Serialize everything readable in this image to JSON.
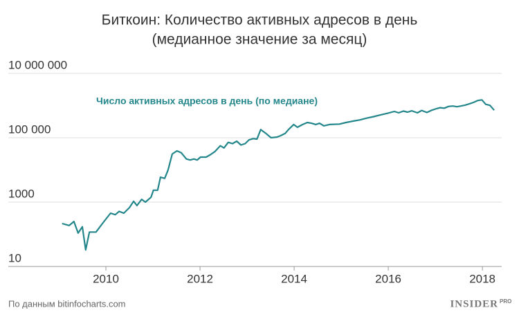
{
  "chart_data": {
    "type": "line",
    "title": "Биткоин: Количество активных адресов в день",
    "subtitle": "(медианное значение за месяц)",
    "annotation": "Число активных адресов в день (по медиане)",
    "source": "По данным bitinfocharts.com",
    "logo": "INSIDER",
    "logo_suffix": "PRO",
    "log_scale": true,
    "grid": true,
    "x": [
      2009.07,
      2009.22,
      2009.32,
      2009.41,
      2009.5,
      2009.57,
      2009.65,
      2009.79,
      2009.96,
      2010.1,
      2010.2,
      2010.28,
      2010.38,
      2010.5,
      2010.59,
      2010.66,
      2010.76,
      2010.84,
      2010.96,
      2011.01,
      2011.1,
      2011.16,
      2011.25,
      2011.32,
      2011.41,
      2011.51,
      2011.6,
      2011.71,
      2011.79,
      2011.87,
      2011.94,
      2012.01,
      2012.13,
      2012.22,
      2012.32,
      2012.43,
      2012.51,
      2012.6,
      2012.69,
      2012.78,
      2012.87,
      2012.96,
      2013.04,
      2013.13,
      2013.21,
      2013.29,
      2013.4,
      2013.51,
      2013.63,
      2013.71,
      2013.81,
      2013.88,
      2013.99,
      2014.07,
      2014.18,
      2014.28,
      2014.37,
      2014.46,
      2014.54,
      2014.63,
      2014.75,
      2014.96,
      2015.1,
      2015.25,
      2015.4,
      2015.54,
      2015.69,
      2015.84,
      2015.99,
      2016.13,
      2016.22,
      2016.32,
      2016.41,
      2016.5,
      2016.62,
      2016.71,
      2016.82,
      2016.91,
      2017.0,
      2017.1,
      2017.19,
      2017.28,
      2017.37,
      2017.46,
      2017.54,
      2017.63,
      2017.72,
      2017.81,
      2017.9,
      2017.99,
      2018.07,
      2018.16,
      2018.25
    ],
    "series": [
      {
        "name": "Число активных адресов в день (по медиане)",
        "color": "#23868a",
        "values": [
          138,
          120,
          160,
          70,
          110,
          21,
          75,
          75,
          160,
          290,
          260,
          330,
          290,
          430,
          680,
          500,
          780,
          640,
          910,
          1500,
          1500,
          3800,
          3500,
          6300,
          20000,
          25000,
          22000,
          14000,
          13000,
          14000,
          13000,
          16000,
          16000,
          19000,
          24000,
          36000,
          31000,
          46000,
          42000,
          50000,
          38000,
          42000,
          55000,
          60000,
          58000,
          115000,
          87000,
          64000,
          67000,
          74000,
          87000,
          115000,
          165000,
          135000,
          165000,
          190000,
          180000,
          165000,
          180000,
          150000,
          165000,
          170000,
          190000,
          210000,
          230000,
          260000,
          290000,
          330000,
          370000,
          420000,
          380000,
          430000,
          400000,
          440000,
          380000,
          450000,
          390000,
          450000,
          500000,
          550000,
          530000,
          600000,
          620000,
          590000,
          620000,
          660000,
          720000,
          800000,
          920000,
          960000,
          700000,
          650000,
          460000
        ]
      }
    ],
    "xlim": [
      2009,
      2018.41
    ],
    "xticks": [
      2010,
      2012,
      2014,
      2016,
      2018
    ],
    "ylim": [
      10,
      10000000
    ],
    "yticks": [
      10,
      {
        "value": 1000,
        "label": "1000"
      },
      {
        "value": 100000,
        "label": "100 000"
      },
      {
        "value": 10000000,
        "label": "10 000 000"
      }
    ]
  }
}
